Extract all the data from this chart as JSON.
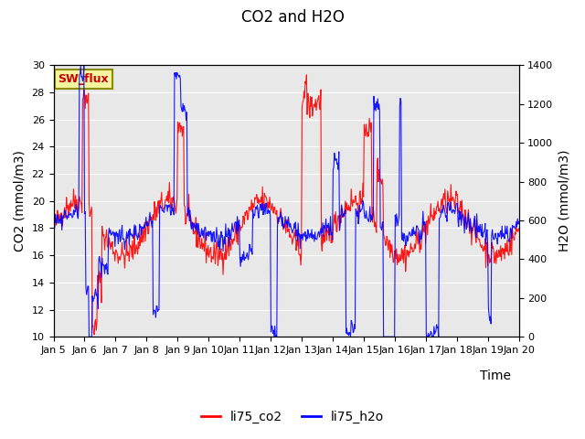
{
  "title": "CO2 and H2O",
  "xlabel": "Time",
  "ylabel_left": "CO2 (mmol/m3)",
  "ylabel_right": "H2O (mmol/m3)",
  "ylim_left": [
    10,
    30
  ],
  "ylim_right": [
    0,
    1400
  ],
  "background_color": "#e8e8e8",
  "legend_entries": [
    "li75_co2",
    "li75_h2o"
  ],
  "legend_colors": [
    "red",
    "blue"
  ],
  "annotation_text": "SW_flux",
  "annotation_color": "#cc0000",
  "annotation_bg": "#f5f5a0",
  "annotation_border": "#8B8B00",
  "co2_color": "red",
  "h2o_color": "blue",
  "xtick_labels": [
    "Jan 5",
    "Jan 6",
    "Jan 7",
    "Jan 8",
    "Jan 9",
    "Jan 10",
    "Jan 11",
    "Jan 12",
    "Jan 13",
    "Jan 14",
    "Jan 15",
    "Jan 16",
    "Jan 17",
    "Jan 18",
    "Jan 19",
    "Jan 20"
  ],
  "xtick_positions": [
    0,
    1,
    2,
    3,
    4,
    5,
    6,
    7,
    8,
    9,
    10,
    11,
    12,
    13,
    14,
    15
  ],
  "yticks_left": [
    10,
    12,
    14,
    16,
    18,
    20,
    22,
    24,
    26,
    28,
    30
  ],
  "yticks_right": [
    0,
    200,
    400,
    600,
    800,
    1000,
    1200,
    1400
  ]
}
